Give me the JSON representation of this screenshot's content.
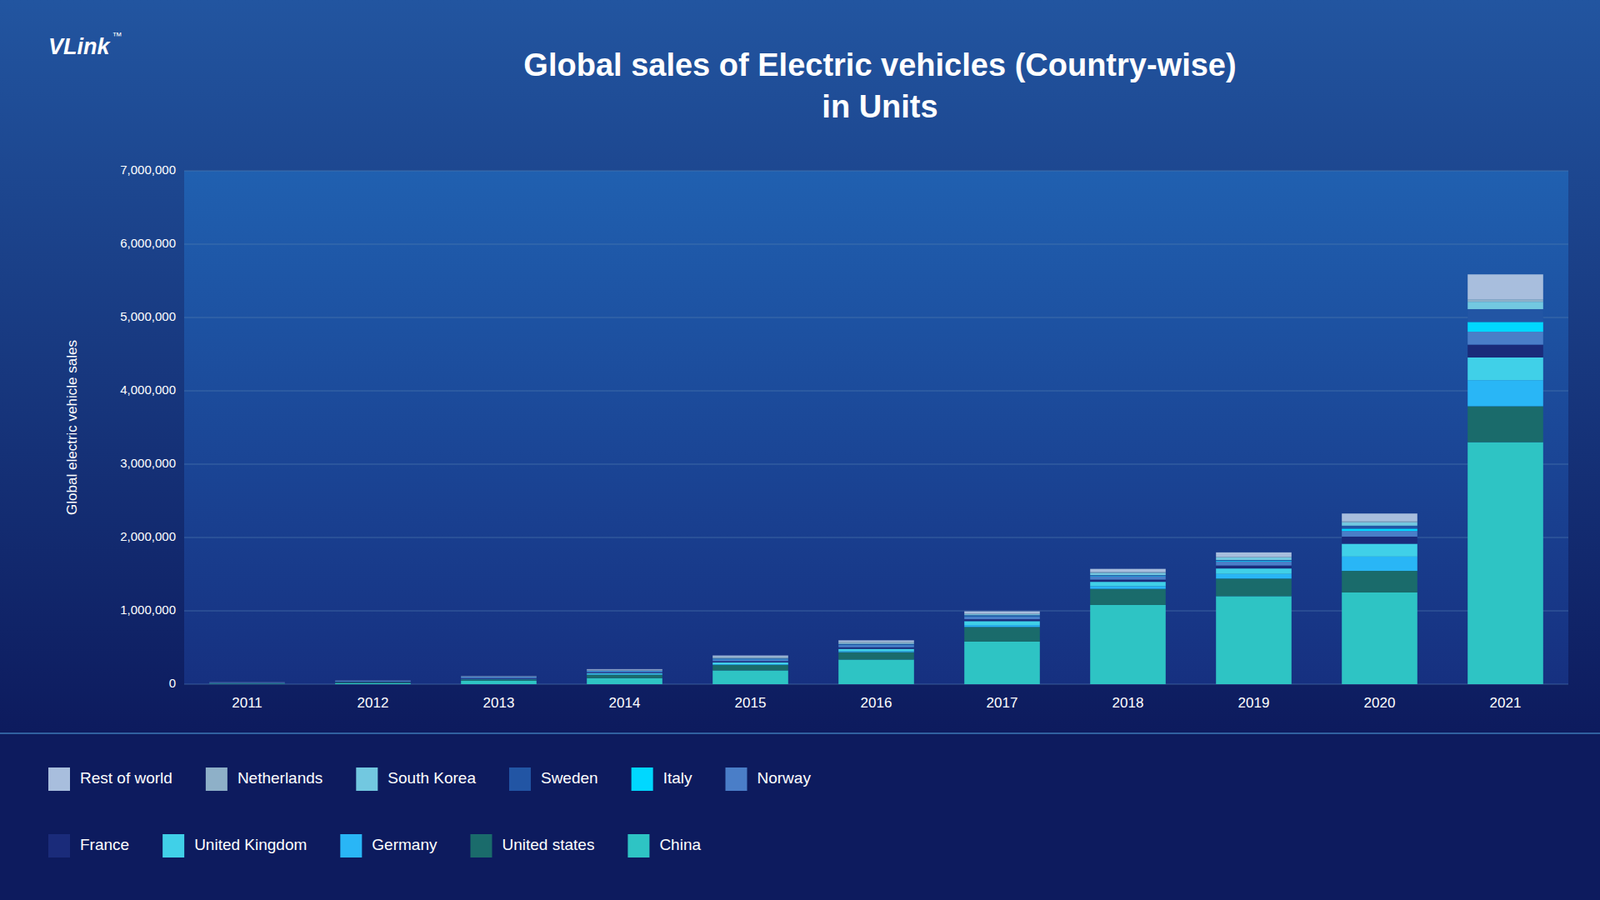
{
  "chart_data": {
    "type": "bar",
    "stacked": true,
    "title": "Global sales of Electric vehicles (Country-wise)\nin Units",
    "y_label": "Global electric vehicle sales",
    "annotations": [
      "VLink",
      "™"
    ],
    "categories": [
      "2011",
      "2012",
      "2013",
      "2014",
      "2015",
      "2016",
      "2017",
      "2018",
      "2019",
      "2020",
      "2021"
    ],
    "series": [
      {
        "name": "China",
        "color": "#2EC4C4",
        "values": [
          5000,
          13000,
          47000,
          83000,
          188000,
          336000,
          580000,
          1080000,
          1200000,
          1250000,
          3300000
        ]
      },
      {
        "name": "United states",
        "color": "#1A6B6B",
        "values": [
          10000,
          14000,
          18000,
          45000,
          75000,
          100000,
          200000,
          220000,
          240000,
          295000,
          490000
        ]
      },
      {
        "name": "Germany",
        "color": "#29B6F6",
        "values": [
          0,
          500,
          1500,
          5000,
          8000,
          11000,
          25000,
          36000,
          63000,
          195000,
          355000
        ]
      },
      {
        "name": "United Kingdom",
        "color": "#40D0E8",
        "values": [
          0,
          1000,
          3500,
          15000,
          25000,
          35000,
          55000,
          60000,
          75000,
          175000,
          310000
        ]
      },
      {
        "name": "France",
        "color": "#1A2B7A",
        "values": [
          2000,
          5000,
          10000,
          12000,
          17000,
          21000,
          25000,
          30000,
          40000,
          97000,
          175000
        ]
      },
      {
        "name": "Norway",
        "color": "#4A7EC8",
        "values": [
          5000,
          9000,
          17000,
          19000,
          26000,
          30000,
          35000,
          46000,
          56000,
          77000,
          176000
        ]
      },
      {
        "name": "Italy",
        "color": "#00D8FF",
        "values": [
          0,
          500,
          1000,
          2000,
          3000,
          3500,
          4500,
          5000,
          8000,
          32000,
          133000
        ]
      },
      {
        "name": "Sweden",
        "color": "#2255A4",
        "values": [
          0,
          500,
          1000,
          2500,
          7000,
          10000,
          15000,
          10000,
          11000,
          40000,
          175000
        ]
      },
      {
        "name": "South Korea",
        "color": "#72C8E0",
        "values": [
          0,
          500,
          1000,
          2000,
          6000,
          8000,
          14000,
          31000,
          35000,
          46000,
          100000
        ]
      },
      {
        "name": "Netherlands",
        "color": "#8EB0C8",
        "values": [
          1000,
          1500,
          4000,
          12000,
          21000,
          23000,
          10000,
          14000,
          9000,
          20000,
          34000
        ]
      },
      {
        "name": "Rest of world",
        "color": "#A8BEDD",
        "values": [
          2000,
          2500,
          4500,
          8000,
          15000,
          20000,
          30000,
          40000,
          60000,
          100000,
          340000
        ]
      }
    ],
    "ylim": [
      0,
      7000000
    ],
    "yticks": [
      0,
      {
        "value": 1000000,
        "label": "1,000,000"
      },
      {
        "value": 2000000,
        "label": "2,000,000"
      },
      {
        "value": 3000000,
        "label": "3,000,000"
      },
      {
        "value": 4000000,
        "label": "4,000,000"
      },
      {
        "value": 5000000,
        "label": "5,000,000"
      },
      {
        "value": 6000000,
        "label": "6,000,000"
      },
      {
        "value": 7000000,
        "label": "7,000,000"
      }
    ],
    "grid": true,
    "legend": "bottom"
  }
}
